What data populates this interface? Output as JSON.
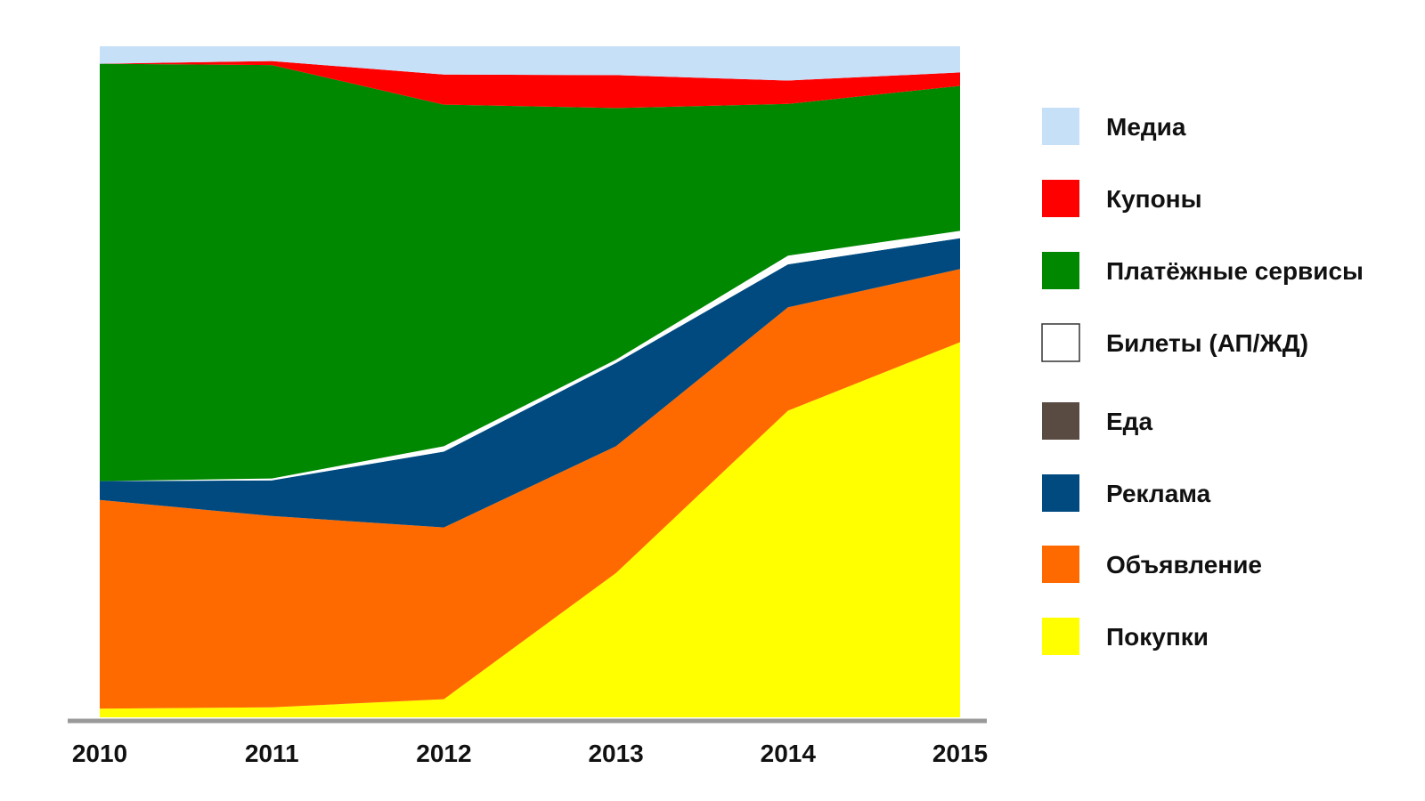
{
  "chart_data": {
    "type": "area",
    "stacked": true,
    "normalized": true,
    "x": [
      "2010",
      "2011",
      "2012",
      "2013",
      "2014",
      "2015"
    ],
    "title": "",
    "xlabel": "",
    "ylabel": "",
    "ylim": [
      0,
      100
    ],
    "grid": false,
    "legend_position": "right",
    "series": [
      {
        "name": "Покупки",
        "color": "#ffff00",
        "values": [
          1.3,
          1.5,
          2.7,
          21.5,
          45.7,
          55.9
        ]
      },
      {
        "name": "Объявление",
        "color": "#ff6a00",
        "values": [
          31.1,
          28.5,
          25.6,
          18.9,
          15.4,
          10.9
        ]
      },
      {
        "name": "Реклама",
        "color": "#004a80",
        "values": [
          2.8,
          5.3,
          11.3,
          12.4,
          6.4,
          4.6
        ]
      },
      {
        "name": "Еда",
        "color": "#594a42",
        "values": [
          0,
          0,
          0,
          0,
          0,
          0
        ]
      },
      {
        "name": "Билеты (АП/ЖД)",
        "color": "#ffffff",
        "values": [
          0,
          0.3,
          0.8,
          0.5,
          1.3,
          1.1
        ]
      },
      {
        "name": "Платёжные сервисы",
        "color": "#008800",
        "values": [
          62.2,
          61.6,
          50.9,
          37.5,
          22.6,
          21.6
        ]
      },
      {
        "name": "Купоны",
        "color": "#ff0000",
        "values": [
          0,
          0.6,
          4.5,
          4.9,
          3.5,
          2.0
        ]
      },
      {
        "name": "Медиа",
        "color": "#c6e0f8",
        "values": [
          2.6,
          2.2,
          4.2,
          4.3,
          5.1,
          3.9
        ]
      }
    ],
    "legend_order": [
      "Медиа",
      "Купоны",
      "Платёжные сервисы",
      "Билеты (АП/ЖД)",
      "Еда",
      "Реклама",
      "Объявление",
      "Покупки"
    ],
    "axis_color": "#999999"
  }
}
